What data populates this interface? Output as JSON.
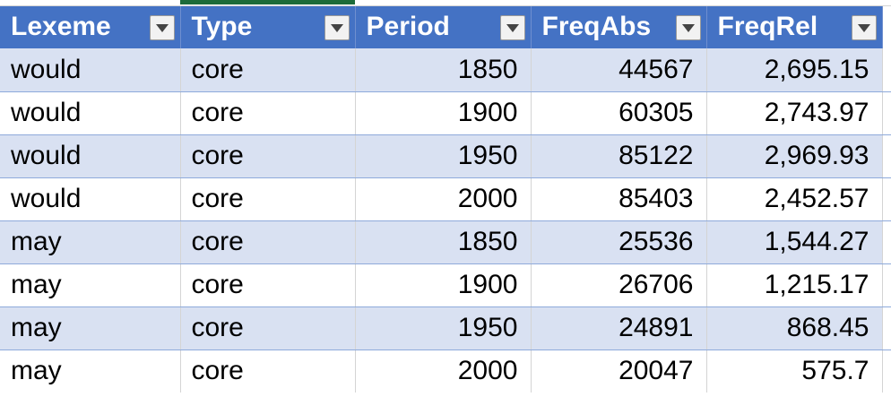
{
  "table": {
    "headers": [
      "Lexeme",
      "Type",
      "Period",
      "FreqAbs",
      "FreqRel"
    ],
    "filter_icon": "dropdown-arrow-icon",
    "rows": [
      [
        "would",
        "core",
        "1850",
        "44567",
        "2,695.15"
      ],
      [
        "would",
        "core",
        "1900",
        "60305",
        "2,743.97"
      ],
      [
        "would",
        "core",
        "1950",
        "85122",
        "2,969.93"
      ],
      [
        "would",
        "core",
        "2000",
        "85403",
        "2,452.57"
      ],
      [
        "may",
        "core",
        "1850",
        "25536",
        "1,544.27"
      ],
      [
        "may",
        "core",
        "1900",
        "26706",
        "1,215.17"
      ],
      [
        "may",
        "core",
        "1950",
        "24891",
        "868.45"
      ],
      [
        "may",
        "core",
        "2000",
        "20047",
        "575.7"
      ]
    ]
  },
  "colors": {
    "header_bg": "#4472c4",
    "band_bg": "#d9e1f2",
    "header_text": "#ffffff",
    "selection_accent": "#1d6b3a"
  }
}
